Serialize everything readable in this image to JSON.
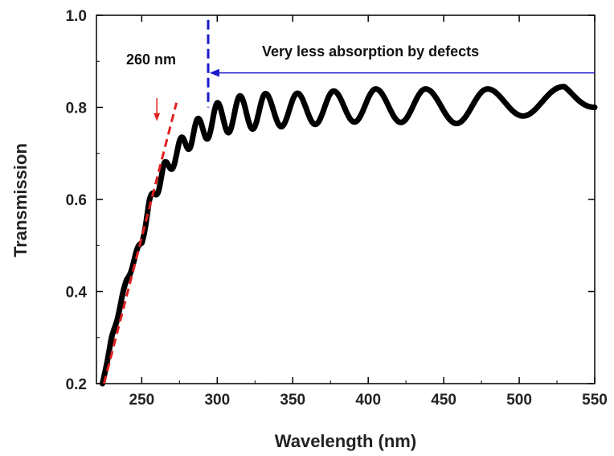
{
  "chart_data": {
    "type": "line",
    "xlabel": "Wavelength (nm)",
    "ylabel": "Transmission",
    "xlim": [
      220,
      550
    ],
    "ylim": [
      0.2,
      1.0
    ],
    "xticks": [
      250,
      300,
      350,
      400,
      450,
      500,
      550
    ],
    "yticks": [
      0.2,
      0.4,
      0.6,
      0.8,
      1.0
    ],
    "x_tick_labels": [
      "250",
      "300",
      "350",
      "400",
      "450",
      "500",
      "550"
    ],
    "y_tick_labels": [
      "0.2",
      "0.4",
      "0.6",
      "0.8",
      "1.0"
    ],
    "grid": false,
    "series": [
      {
        "color": "#000000",
        "envelope_upper": [
          [
            224,
            0.2
          ],
          [
            230,
            0.3
          ],
          [
            240,
            0.43
          ],
          [
            250,
            0.52
          ],
          [
            255,
            0.6
          ],
          [
            260,
            0.64
          ],
          [
            265,
            0.68
          ],
          [
            275,
            0.73
          ],
          [
            285,
            0.77
          ],
          [
            300,
            0.81
          ],
          [
            315,
            0.825
          ],
          [
            330,
            0.83
          ],
          [
            350,
            0.83
          ],
          [
            375,
            0.835
          ],
          [
            400,
            0.84
          ],
          [
            440,
            0.84
          ],
          [
            480,
            0.84
          ],
          [
            530,
            0.845
          ],
          [
            550,
            0.8
          ]
        ],
        "envelope_lower": [
          [
            224,
            0.2
          ],
          [
            230,
            0.29
          ],
          [
            240,
            0.42
          ],
          [
            250,
            0.5
          ],
          [
            255,
            0.58
          ],
          [
            260,
            0.61
          ],
          [
            265,
            0.64
          ],
          [
            275,
            0.69
          ],
          [
            285,
            0.72
          ],
          [
            300,
            0.74
          ],
          [
            315,
            0.75
          ],
          [
            330,
            0.755
          ],
          [
            350,
            0.76
          ],
          [
            375,
            0.765
          ],
          [
            400,
            0.77
          ],
          [
            440,
            0.765
          ],
          [
            480,
            0.765
          ],
          [
            530,
            0.8
          ],
          [
            550,
            0.8
          ]
        ],
        "fringe_maxima_x": [
          230,
          238,
          247,
          256,
          265,
          276,
          287,
          300,
          315,
          332,
          353,
          377,
          405,
          438,
          479,
          529
        ]
      }
    ],
    "annotations": {
      "wavelength_label": "260 nm",
      "wavelength_arrow": {
        "x": 260,
        "y_from": 0.82,
        "y_to": 0.77,
        "color": "#e02020"
      },
      "tangent_line": {
        "color": "#e02020",
        "from": [
          225,
          0.2
        ],
        "to": [
          273,
          0.81
        ]
      },
      "absorption_text": "Very less absorption by defects",
      "blue_marker": {
        "x": 294,
        "y_from": 0.8,
        "y_to": 0.99,
        "color": "#1a1acc"
      },
      "blue_arrow": {
        "y": 0.875,
        "x_from": 550,
        "x_to": 295,
        "color": "#1a1acc"
      }
    }
  }
}
